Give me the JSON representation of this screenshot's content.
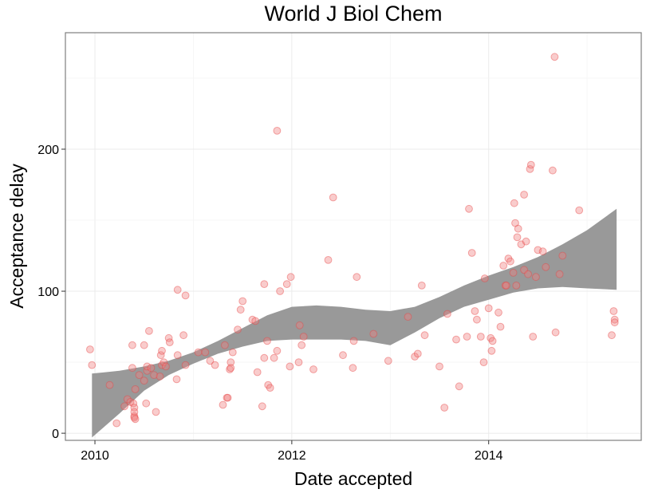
{
  "chart_data": {
    "type": "scatter",
    "title": "World J Biol Chem",
    "xlabel": "Date accepted",
    "ylabel": "Acceptance delay",
    "xlim": [
      2009.7,
      2015.55
    ],
    "ylim": [
      -5,
      282
    ],
    "x_ticks": [
      2010,
      2012,
      2014
    ],
    "x_tick_labels": [
      "2010",
      "2012",
      "2014"
    ],
    "y_ticks": [
      0,
      100,
      200
    ],
    "y_tick_labels": [
      "0",
      "100",
      "200"
    ],
    "grid": true,
    "legend": "none",
    "point_color": "#f08080",
    "band_color": "#999999",
    "points": [
      [
        2009.95,
        59
      ],
      [
        2009.97,
        48
      ],
      [
        2010.15,
        34
      ],
      [
        2010.22,
        7
      ],
      [
        2010.3,
        19
      ],
      [
        2010.33,
        24
      ],
      [
        2010.36,
        22
      ],
      [
        2010.38,
        46
      ],
      [
        2010.38,
        62
      ],
      [
        2010.39,
        21
      ],
      [
        2010.4,
        18
      ],
      [
        2010.4,
        15
      ],
      [
        2010.4,
        12
      ],
      [
        2010.4,
        11
      ],
      [
        2010.41,
        10
      ],
      [
        2010.41,
        31
      ],
      [
        2010.45,
        41
      ],
      [
        2010.5,
        62
      ],
      [
        2010.5,
        37
      ],
      [
        2010.52,
        21
      ],
      [
        2010.53,
        44
      ],
      [
        2010.53,
        47
      ],
      [
        2010.55,
        72
      ],
      [
        2010.57,
        46
      ],
      [
        2010.6,
        41
      ],
      [
        2010.62,
        15
      ],
      [
        2010.66,
        40
      ],
      [
        2010.67,
        55
      ],
      [
        2010.68,
        58
      ],
      [
        2010.68,
        48
      ],
      [
        2010.7,
        50
      ],
      [
        2010.72,
        47
      ],
      [
        2010.75,
        67
      ],
      [
        2010.76,
        64
      ],
      [
        2010.83,
        38
      ],
      [
        2010.84,
        55
      ],
      [
        2010.84,
        101
      ],
      [
        2010.9,
        69
      ],
      [
        2010.92,
        97
      ],
      [
        2010.92,
        48
      ],
      [
        2011.05,
        57
      ],
      [
        2011.12,
        57
      ],
      [
        2011.17,
        51
      ],
      [
        2011.22,
        48
      ],
      [
        2011.3,
        20
      ],
      [
        2011.32,
        62
      ],
      [
        2011.34,
        25
      ],
      [
        2011.35,
        25
      ],
      [
        2011.37,
        45
      ],
      [
        2011.38,
        50
      ],
      [
        2011.38,
        46
      ],
      [
        2011.4,
        57
      ],
      [
        2011.45,
        73
      ],
      [
        2011.48,
        87
      ],
      [
        2011.5,
        93
      ],
      [
        2011.6,
        80
      ],
      [
        2011.63,
        79
      ],
      [
        2011.65,
        43
      ],
      [
        2011.7,
        19
      ],
      [
        2011.72,
        105
      ],
      [
        2011.72,
        53
      ],
      [
        2011.75,
        65
      ],
      [
        2011.76,
        34
      ],
      [
        2011.78,
        32
      ],
      [
        2011.82,
        53
      ],
      [
        2011.85,
        58
      ],
      [
        2011.85,
        213
      ],
      [
        2011.88,
        100
      ],
      [
        2011.95,
        105
      ],
      [
        2011.98,
        47
      ],
      [
        2011.99,
        110
      ],
      [
        2012.07,
        50
      ],
      [
        2012.08,
        76
      ],
      [
        2012.1,
        62
      ],
      [
        2012.12,
        68
      ],
      [
        2012.22,
        45
      ],
      [
        2012.37,
        122
      ],
      [
        2012.42,
        166
      ],
      [
        2012.52,
        55
      ],
      [
        2012.62,
        46
      ],
      [
        2012.63,
        65
      ],
      [
        2012.66,
        110
      ],
      [
        2012.83,
        70
      ],
      [
        2012.98,
        51
      ],
      [
        2013.18,
        82
      ],
      [
        2013.25,
        54
      ],
      [
        2013.28,
        56
      ],
      [
        2013.32,
        104
      ],
      [
        2013.35,
        69
      ],
      [
        2013.5,
        47
      ],
      [
        2013.55,
        18
      ],
      [
        2013.58,
        84
      ],
      [
        2013.67,
        66
      ],
      [
        2013.7,
        33
      ],
      [
        2013.78,
        68
      ],
      [
        2013.8,
        158
      ],
      [
        2013.83,
        127
      ],
      [
        2013.86,
        86
      ],
      [
        2013.88,
        80
      ],
      [
        2013.92,
        68
      ],
      [
        2013.95,
        50
      ],
      [
        2013.96,
        109
      ],
      [
        2014.0,
        88
      ],
      [
        2014.02,
        67
      ],
      [
        2014.03,
        58
      ],
      [
        2014.04,
        65
      ],
      [
        2014.1,
        85
      ],
      [
        2014.12,
        75
      ],
      [
        2014.15,
        118
      ],
      [
        2014.17,
        104
      ],
      [
        2014.18,
        104
      ],
      [
        2014.2,
        123
      ],
      [
        2014.22,
        121
      ],
      [
        2014.25,
        113
      ],
      [
        2014.26,
        162
      ],
      [
        2014.27,
        148
      ],
      [
        2014.28,
        104
      ],
      [
        2014.29,
        138
      ],
      [
        2014.3,
        144
      ],
      [
        2014.33,
        133
      ],
      [
        2014.36,
        168
      ],
      [
        2014.36,
        115
      ],
      [
        2014.38,
        135
      ],
      [
        2014.4,
        112
      ],
      [
        2014.42,
        186
      ],
      [
        2014.43,
        189
      ],
      [
        2014.45,
        68
      ],
      [
        2014.48,
        110
      ],
      [
        2014.5,
        129
      ],
      [
        2014.55,
        128
      ],
      [
        2014.58,
        117
      ],
      [
        2014.65,
        185
      ],
      [
        2014.67,
        265
      ],
      [
        2014.68,
        71
      ],
      [
        2014.72,
        112
      ],
      [
        2014.75,
        125
      ],
      [
        2014.92,
        157
      ],
      [
        2015.25,
        69
      ],
      [
        2015.27,
        86
      ],
      [
        2015.28,
        80
      ],
      [
        2015.28,
        78
      ]
    ],
    "smooth_band": {
      "x": [
        2009.97,
        2010.25,
        2010.5,
        2010.75,
        2011.0,
        2011.25,
        2011.5,
        2011.75,
        2012.0,
        2012.25,
        2012.5,
        2012.75,
        2013.0,
        2013.25,
        2013.5,
        2013.75,
        2014.0,
        2014.25,
        2014.5,
        2014.75,
        2015.0,
        2015.3
      ],
      "upper": [
        42,
        44,
        47,
        51,
        57,
        65,
        74,
        83,
        89,
        90,
        89,
        87,
        86,
        89,
        96,
        104,
        111,
        117,
        124,
        133,
        143,
        158
      ],
      "lower": [
        -3,
        14,
        30,
        41,
        49,
        56,
        61,
        65,
        66,
        66,
        66,
        65,
        62,
        71,
        81,
        89,
        94,
        99,
        102,
        103,
        102,
        101
      ]
    }
  }
}
